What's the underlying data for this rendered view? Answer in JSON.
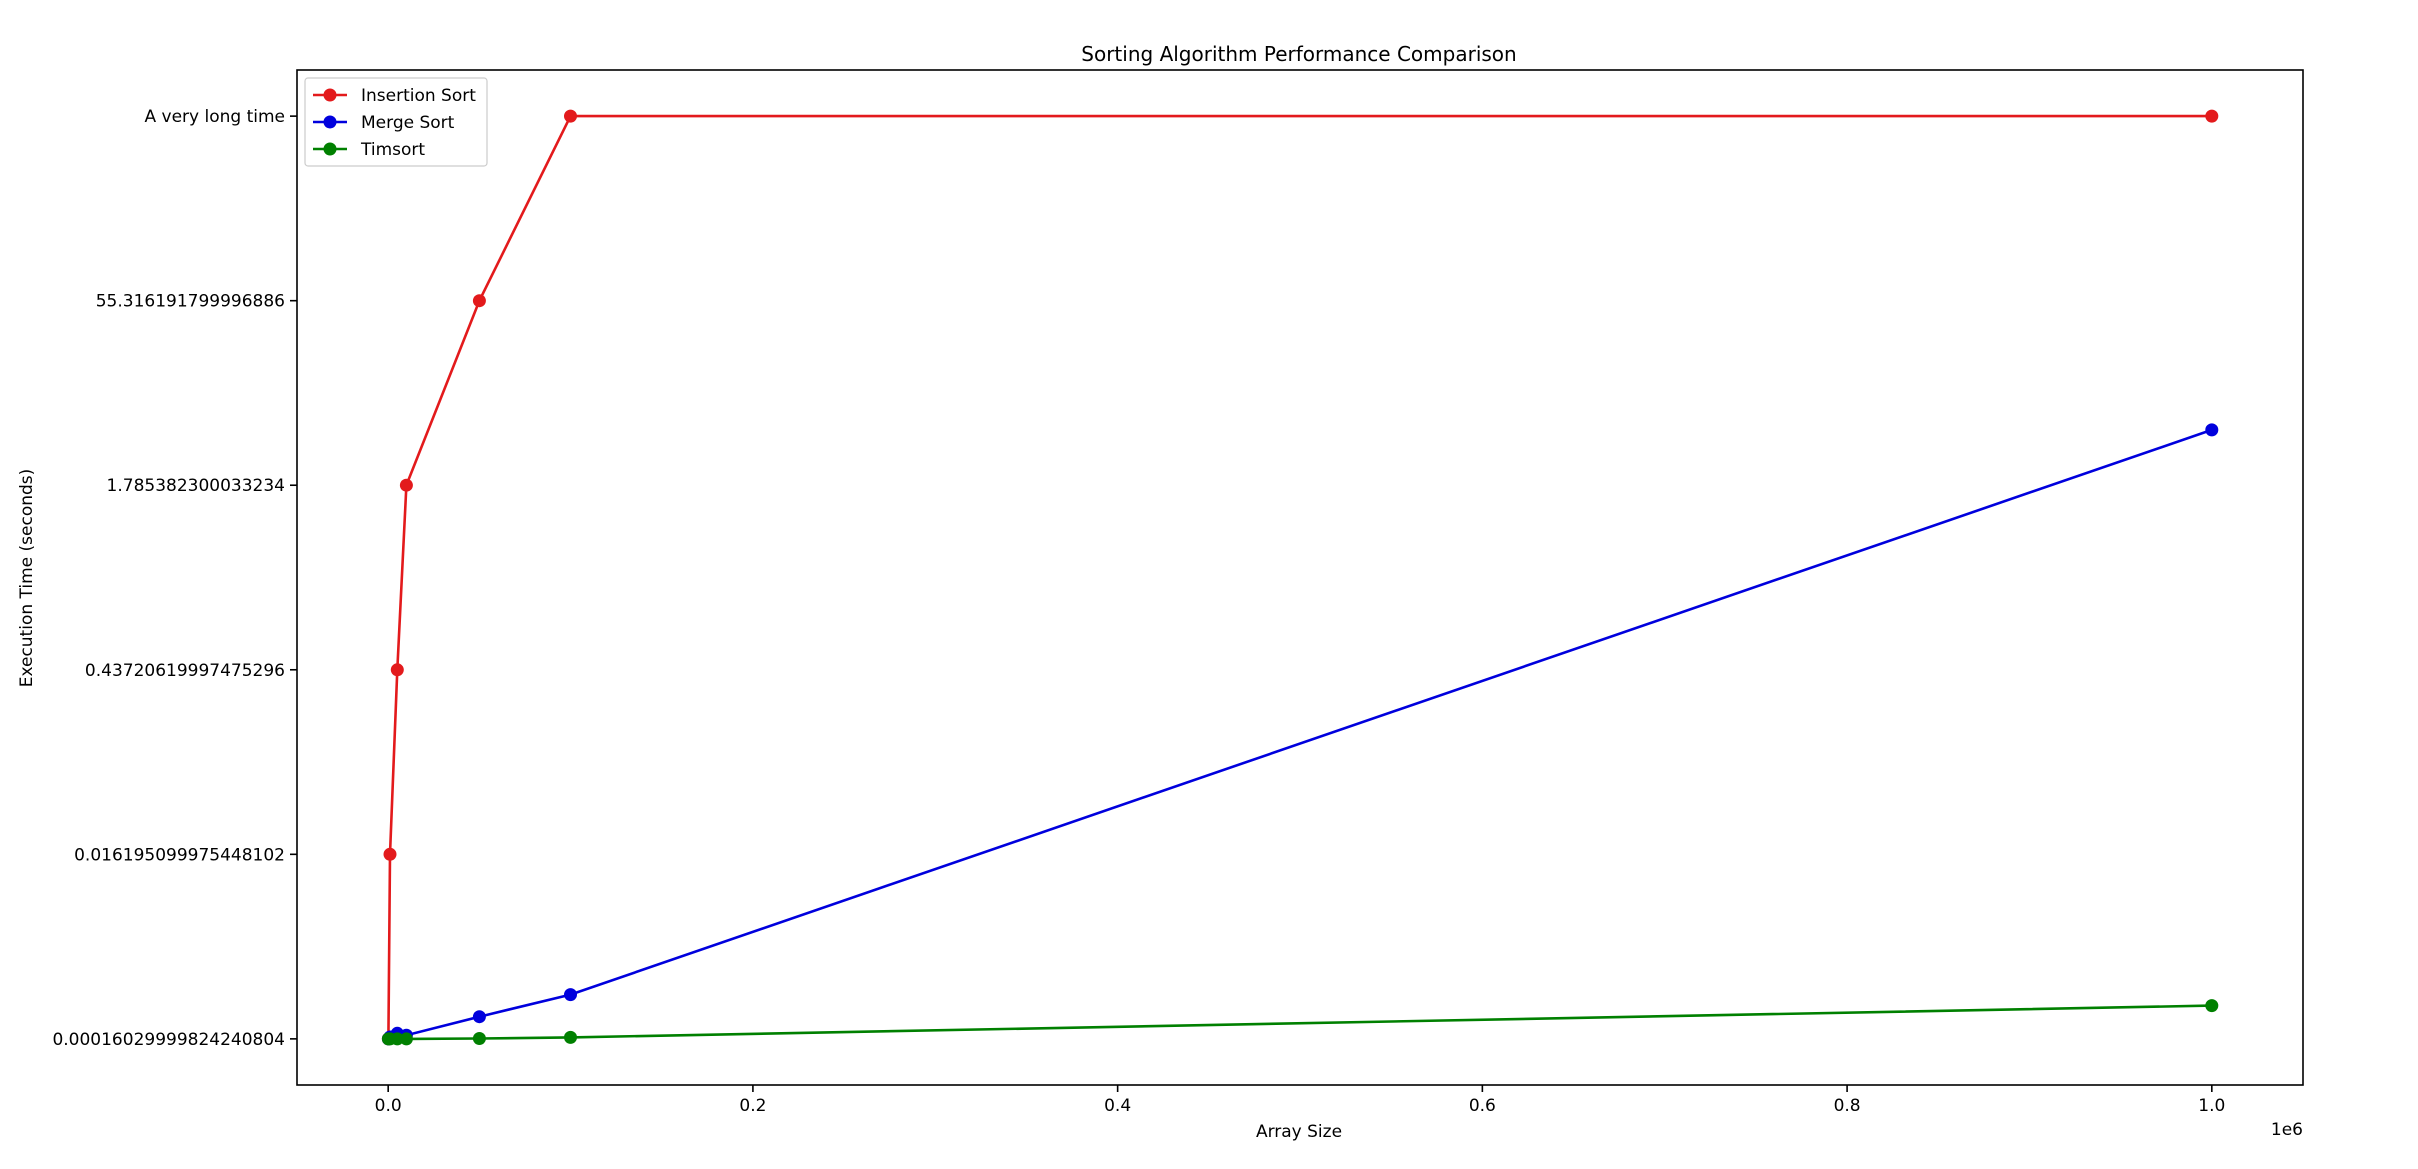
{
  "chart_data": {
    "type": "line",
    "title": "Sorting Algorithm Performance Comparison",
    "xlabel": "Array Size",
    "ylabel": "Execution Time (seconds)",
    "x_offset_label": "1e6",
    "x_tick_labels": [
      "0.0",
      "0.2",
      "0.4",
      "0.6",
      "0.8",
      "1.0"
    ],
    "x_ticks": [
      0,
      200000,
      400000,
      600000,
      800000,
      1000000
    ],
    "xlim": [
      -50000,
      1050000
    ],
    "y_scale": "categorical-log",
    "y_tick_labels": [
      "0.00016029999824240804",
      "0.016195099975448102",
      "0.43720619997475296",
      "1.785382300033234",
      "55.316191799996886",
      "A very long time"
    ],
    "ylim": [
      -0.25,
      5.25
    ],
    "legend_position": "top-left",
    "grid": false,
    "x": [
      100,
      1000,
      5000,
      10000,
      50000,
      100000,
      1000000
    ],
    "series": [
      {
        "name": "Insertion Sort",
        "color": "#e31a1c",
        "y_levels": [
          0,
          1,
          2,
          3,
          4,
          5,
          5
        ]
      },
      {
        "name": "Merge Sort",
        "color": "#0000dd",
        "y_levels": [
          0,
          0.01,
          0.03,
          0.02,
          0.12,
          0.24,
          3.3
        ]
      },
      {
        "name": "Timsort",
        "color": "#008000",
        "y_levels": [
          0,
          0,
          0,
          0,
          0.002,
          0.008,
          0.18
        ]
      }
    ]
  }
}
